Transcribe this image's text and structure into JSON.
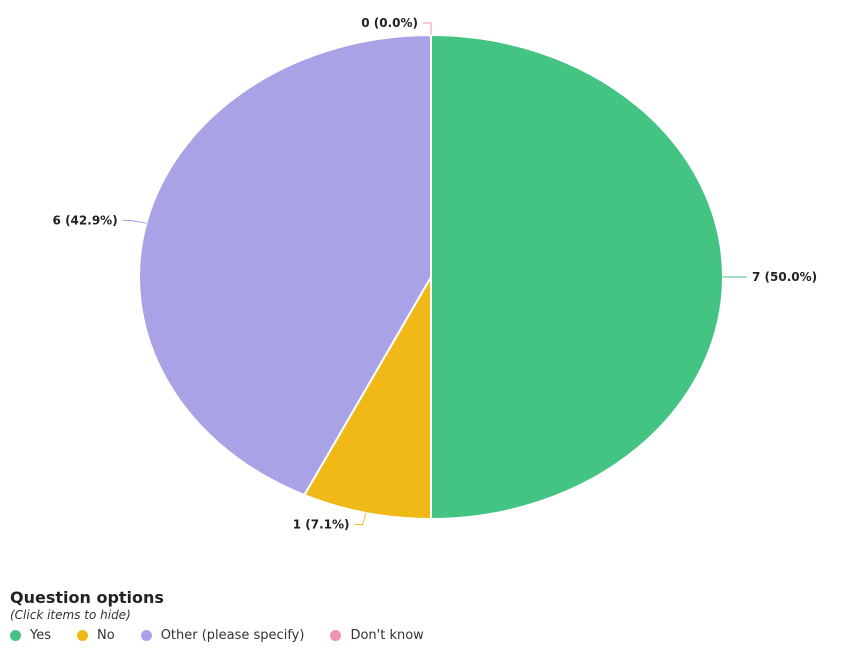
{
  "chart_data": {
    "type": "pie",
    "categories": [
      "Yes",
      "No",
      "Other (please specify)",
      "Don't know"
    ],
    "values": [
      7,
      1,
      6,
      0
    ],
    "labels": [
      "7 (50.0%)",
      "1 (7.1%)",
      "6 (42.9%)",
      "0 (0.0%)"
    ],
    "colors": [
      "#43c483",
      "#f0b917",
      "#a9a2e6",
      "#ee93b4"
    ],
    "start_angle_deg": 0,
    "direction": "clockwise",
    "legend": {
      "title": "Question options",
      "hint": "(Click items to hide)",
      "placement": "bottom-left"
    }
  }
}
